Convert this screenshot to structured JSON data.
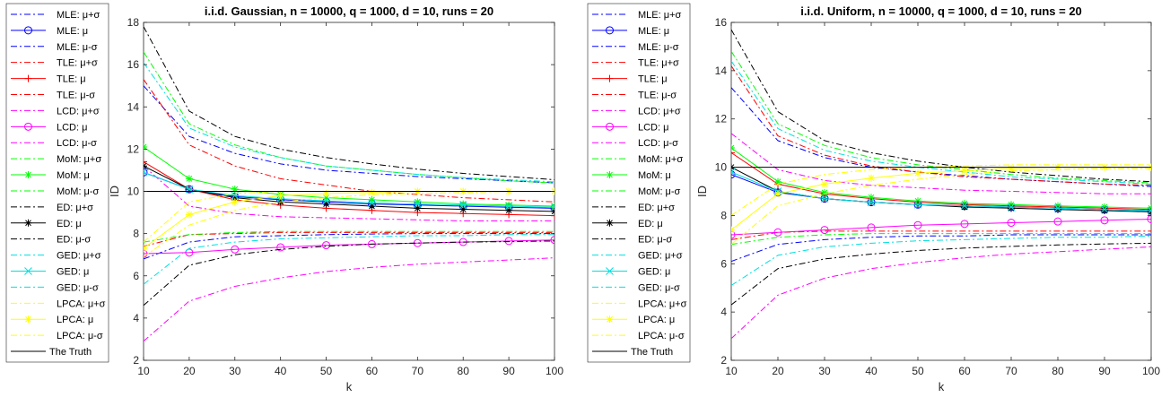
{
  "chart_data": [
    {
      "type": "line",
      "title": "i.i.d. Gaussian, n = 10000, q = 1000, d = 10, runs = 20",
      "xlabel": "k",
      "ylabel": "ID",
      "xlim": [
        10,
        100
      ],
      "ylim": [
        2,
        18
      ],
      "xticks": [
        10,
        20,
        30,
        40,
        50,
        60,
        70,
        80,
        90,
        100
      ],
      "yticks": [
        2,
        4,
        6,
        8,
        10,
        12,
        14,
        16,
        18
      ],
      "grid": false,
      "legend_position": "outside-left",
      "x": [
        10,
        20,
        30,
        40,
        50,
        60,
        70,
        80,
        90,
        100
      ],
      "series": [
        {
          "name": "MLE: μ+σ",
          "color": "#0000ff",
          "style": "dashdot",
          "marker": "none",
          "values": [
            15.0,
            12.6,
            11.8,
            11.3,
            11.0,
            10.85,
            10.7,
            10.6,
            10.5,
            10.4
          ]
        },
        {
          "name": "MLE: μ",
          "color": "#0000ff",
          "style": "solid",
          "marker": "circle",
          "values": [
            10.9,
            10.1,
            9.75,
            9.6,
            9.5,
            9.4,
            9.35,
            9.3,
            9.25,
            9.2
          ]
        },
        {
          "name": "MLE: μ-σ",
          "color": "#0000ff",
          "style": "dashdot",
          "marker": "none",
          "values": [
            6.8,
            7.6,
            7.85,
            7.9,
            7.95,
            7.98,
            8.0,
            8.0,
            8.0,
            8.0
          ]
        },
        {
          "name": "TLE: μ+σ",
          "color": "#ff0000",
          "style": "dashdot",
          "marker": "none",
          "values": [
            15.3,
            12.2,
            11.2,
            10.6,
            10.3,
            10.0,
            9.85,
            9.7,
            9.6,
            9.5
          ]
        },
        {
          "name": "TLE: μ",
          "color": "#ff0000",
          "style": "solid",
          "marker": "plus",
          "values": [
            11.4,
            10.1,
            9.6,
            9.35,
            9.2,
            9.1,
            9.0,
            8.95,
            8.9,
            8.85
          ]
        },
        {
          "name": "TLE: μ-σ",
          "color": "#ff0000",
          "style": "dashdot",
          "marker": "none",
          "values": [
            7.4,
            7.95,
            8.0,
            8.05,
            8.05,
            8.05,
            8.05,
            8.05,
            8.05,
            8.05
          ]
        },
        {
          "name": "LCD: μ+σ",
          "color": "#ff00ff",
          "style": "dashdot",
          "marker": "none",
          "values": [
            11.2,
            9.3,
            8.95,
            8.8,
            8.75,
            8.7,
            8.65,
            8.6,
            8.6,
            8.6
          ]
        },
        {
          "name": "LCD: μ",
          "color": "#ff00ff",
          "style": "solid",
          "marker": "circle",
          "values": [
            7.05,
            7.1,
            7.25,
            7.35,
            7.45,
            7.5,
            7.55,
            7.6,
            7.65,
            7.7
          ]
        },
        {
          "name": "LCD: μ-σ",
          "color": "#ff00ff",
          "style": "dashdot",
          "marker": "none",
          "values": [
            2.9,
            4.8,
            5.5,
            5.9,
            6.2,
            6.4,
            6.55,
            6.65,
            6.75,
            6.85
          ]
        },
        {
          "name": "MoM: μ+σ",
          "color": "#00ff00",
          "style": "dashdot",
          "marker": "none",
          "values": [
            16.6,
            13.2,
            12.2,
            11.6,
            11.2,
            11.0,
            10.8,
            10.65,
            10.5,
            10.4
          ]
        },
        {
          "name": "MoM: μ",
          "color": "#00ff00",
          "style": "solid",
          "marker": "asterisk",
          "values": [
            12.1,
            10.6,
            10.1,
            9.85,
            9.7,
            9.6,
            9.5,
            9.4,
            9.35,
            9.3
          ]
        },
        {
          "name": "MoM: μ-σ",
          "color": "#00ff00",
          "style": "dashdot",
          "marker": "none",
          "values": [
            7.6,
            7.95,
            8.05,
            8.1,
            8.1,
            8.1,
            8.1,
            8.1,
            8.1,
            8.1
          ]
        },
        {
          "name": "ED: μ+σ",
          "color": "#000000",
          "style": "dashdot",
          "marker": "none",
          "values": [
            17.8,
            13.8,
            12.6,
            12.0,
            11.6,
            11.3,
            11.05,
            10.85,
            10.7,
            10.55
          ]
        },
        {
          "name": "ED: μ",
          "color": "#000000",
          "style": "solid",
          "marker": "asterisk",
          "values": [
            11.2,
            10.1,
            9.7,
            9.5,
            9.4,
            9.3,
            9.2,
            9.15,
            9.1,
            9.05
          ]
        },
        {
          "name": "ED: μ-σ",
          "color": "#000000",
          "style": "dashdot",
          "marker": "none",
          "values": [
            4.6,
            6.5,
            7.0,
            7.25,
            7.4,
            7.5,
            7.55,
            7.6,
            7.62,
            7.65
          ]
        },
        {
          "name": "GED: μ+σ",
          "color": "#00e0e0",
          "style": "dashdot",
          "marker": "none",
          "values": [
            16.1,
            13.0,
            12.1,
            11.6,
            11.2,
            11.0,
            10.8,
            10.65,
            10.55,
            10.45
          ]
        },
        {
          "name": "GED: μ",
          "color": "#00e0e0",
          "style": "solid",
          "marker": "x",
          "values": [
            10.9,
            10.1,
            9.8,
            9.65,
            9.55,
            9.45,
            9.4,
            9.35,
            9.3,
            9.25
          ]
        },
        {
          "name": "GED: μ-σ",
          "color": "#00e0e0",
          "style": "dashdot",
          "marker": "none",
          "values": [
            5.6,
            7.3,
            7.6,
            7.75,
            7.8,
            7.85,
            7.9,
            7.9,
            7.95,
            7.95
          ]
        },
        {
          "name": "LPCA: μ+σ",
          "color": "#ffff00",
          "style": "dashdot",
          "marker": "none",
          "values": [
            7.6,
            9.5,
            9.9,
            10.0,
            10.0,
            10.0,
            10.0,
            10.0,
            10.0,
            10.0
          ]
        },
        {
          "name": "LPCA: μ",
          "color": "#ffff00",
          "style": "solid",
          "marker": "asterisk",
          "values": [
            7.3,
            8.9,
            9.5,
            9.8,
            9.9,
            9.95,
            10.0,
            10.0,
            10.0,
            10.0
          ]
        },
        {
          "name": "LPCA: μ-σ",
          "color": "#ffff00",
          "style": "dashdot",
          "marker": "none",
          "values": [
            6.9,
            8.4,
            9.1,
            9.5,
            9.7,
            9.85,
            9.9,
            9.95,
            10.0,
            10.0
          ]
        },
        {
          "name": "The Truth",
          "color": "#000000",
          "style": "solid",
          "marker": "none",
          "values": [
            10,
            10,
            10,
            10,
            10,
            10,
            10,
            10,
            10,
            10
          ]
        }
      ]
    },
    {
      "type": "line",
      "title": "i.i.d. Uniform, n = 10000, q = 1000, d = 10, runs = 20",
      "xlabel": "k",
      "ylabel": "ID",
      "xlim": [
        10,
        100
      ],
      "ylim": [
        2,
        16
      ],
      "xticks": [
        10,
        20,
        30,
        40,
        50,
        60,
        70,
        80,
        90,
        100
      ],
      "yticks": [
        2,
        4,
        6,
        8,
        10,
        12,
        14,
        16
      ],
      "grid": false,
      "legend_position": "outside-left",
      "x": [
        10,
        20,
        30,
        40,
        50,
        60,
        70,
        80,
        90,
        100
      ],
      "series": [
        {
          "name": "MLE: μ+σ",
          "color": "#0000ff",
          "style": "dashdot",
          "marker": "none",
          "values": [
            13.3,
            11.1,
            10.4,
            10.0,
            9.8,
            9.65,
            9.5,
            9.4,
            9.3,
            9.2
          ]
        },
        {
          "name": "MLE: μ",
          "color": "#0000ff",
          "style": "solid",
          "marker": "circle",
          "values": [
            9.7,
            8.95,
            8.7,
            8.55,
            8.45,
            8.4,
            8.35,
            8.3,
            8.25,
            8.2
          ]
        },
        {
          "name": "MLE: μ-σ",
          "color": "#0000ff",
          "style": "dashdot",
          "marker": "none",
          "values": [
            6.1,
            6.8,
            7.0,
            7.1,
            7.15,
            7.15,
            7.2,
            7.2,
            7.2,
            7.2
          ]
        },
        {
          "name": "TLE: μ+σ",
          "color": "#ff0000",
          "style": "dashdot",
          "marker": "none",
          "values": [
            14.2,
            11.3,
            10.5,
            10.05,
            9.8,
            9.6,
            9.5,
            9.4,
            9.3,
            9.25
          ]
        },
        {
          "name": "TLE: μ",
          "color": "#ff0000",
          "style": "solid",
          "marker": "plus",
          "values": [
            10.6,
            9.3,
            8.9,
            8.7,
            8.55,
            8.45,
            8.4,
            8.35,
            8.3,
            8.25
          ]
        },
        {
          "name": "TLE: μ-σ",
          "color": "#ff0000",
          "style": "dashdot",
          "marker": "none",
          "values": [
            7.0,
            7.3,
            7.35,
            7.35,
            7.35,
            7.35,
            7.35,
            7.35,
            7.35,
            7.35
          ]
        },
        {
          "name": "LCD: μ+σ",
          "color": "#ff00ff",
          "style": "dashdot",
          "marker": "none",
          "values": [
            11.4,
            9.9,
            9.45,
            9.25,
            9.15,
            9.05,
            9.0,
            8.95,
            8.9,
            8.9
          ]
        },
        {
          "name": "LCD: μ",
          "color": "#ff00ff",
          "style": "solid",
          "marker": "circle",
          "values": [
            7.2,
            7.3,
            7.4,
            7.5,
            7.6,
            7.65,
            7.7,
            7.75,
            7.8,
            7.85
          ]
        },
        {
          "name": "LCD: μ-σ",
          "color": "#ff00ff",
          "style": "dashdot",
          "marker": "none",
          "values": [
            2.9,
            4.7,
            5.4,
            5.8,
            6.05,
            6.25,
            6.4,
            6.5,
            6.6,
            6.7
          ]
        },
        {
          "name": "MoM: μ+σ",
          "color": "#00ff00",
          "style": "dashdot",
          "marker": "none",
          "values": [
            14.8,
            11.8,
            10.9,
            10.4,
            10.1,
            9.9,
            9.7,
            9.55,
            9.45,
            9.35
          ]
        },
        {
          "name": "MoM: μ",
          "color": "#00ff00",
          "style": "solid",
          "marker": "asterisk",
          "values": [
            10.8,
            9.4,
            8.95,
            8.75,
            8.6,
            8.5,
            8.45,
            8.4,
            8.35,
            8.3
          ]
        },
        {
          "name": "MoM: μ-σ",
          "color": "#00ff00",
          "style": "dashdot",
          "marker": "none",
          "values": [
            6.8,
            7.1,
            7.2,
            7.25,
            7.25,
            7.25,
            7.25,
            7.25,
            7.25,
            7.25
          ]
        },
        {
          "name": "ED: μ+σ",
          "color": "#000000",
          "style": "dashdot",
          "marker": "none",
          "values": [
            15.7,
            12.3,
            11.1,
            10.6,
            10.25,
            10.0,
            9.8,
            9.65,
            9.5,
            9.4
          ]
        },
        {
          "name": "ED: μ",
          "color": "#000000",
          "style": "solid",
          "marker": "asterisk",
          "values": [
            10.0,
            9.0,
            8.7,
            8.55,
            8.45,
            8.35,
            8.3,
            8.25,
            8.2,
            8.15
          ]
        },
        {
          "name": "ED: μ-σ",
          "color": "#000000",
          "style": "dashdot",
          "marker": "none",
          "values": [
            4.3,
            5.8,
            6.2,
            6.4,
            6.55,
            6.65,
            6.72,
            6.78,
            6.82,
            6.85
          ]
        },
        {
          "name": "GED: μ+σ",
          "color": "#00e0e0",
          "style": "dashdot",
          "marker": "none",
          "values": [
            14.4,
            11.6,
            10.7,
            10.25,
            10.0,
            9.8,
            9.6,
            9.5,
            9.4,
            9.3
          ]
        },
        {
          "name": "GED: μ",
          "color": "#00e0e0",
          "style": "solid",
          "marker": "x",
          "values": [
            9.8,
            9.0,
            8.7,
            8.55,
            8.45,
            8.4,
            8.35,
            8.3,
            8.25,
            8.2
          ]
        },
        {
          "name": "GED: μ-σ",
          "color": "#00e0e0",
          "style": "dashdot",
          "marker": "none",
          "values": [
            5.1,
            6.35,
            6.7,
            6.85,
            6.95,
            7.0,
            7.05,
            7.1,
            7.1,
            7.15
          ]
        },
        {
          "name": "LPCA: μ+σ",
          "color": "#ffff00",
          "style": "dashdot",
          "marker": "none",
          "values": [
            8.0,
            9.3,
            9.7,
            9.9,
            10.0,
            10.05,
            10.1,
            10.1,
            10.1,
            10.1
          ]
        },
        {
          "name": "LPCA: μ",
          "color": "#ffff00",
          "style": "solid",
          "marker": "asterisk",
          "values": [
            7.4,
            8.9,
            9.3,
            9.55,
            9.75,
            9.85,
            9.95,
            10.0,
            10.0,
            10.0
          ]
        },
        {
          "name": "LPCA: μ-σ",
          "color": "#ffff00",
          "style": "dashdot",
          "marker": "none",
          "values": [
            6.8,
            8.4,
            8.9,
            9.25,
            9.5,
            9.7,
            9.85,
            9.9,
            9.95,
            9.95
          ]
        },
        {
          "name": "The Truth",
          "color": "#000000",
          "style": "solid",
          "marker": "none",
          "values": [
            10,
            10,
            10,
            10,
            10,
            10,
            10,
            10,
            10,
            10
          ]
        }
      ]
    }
  ]
}
